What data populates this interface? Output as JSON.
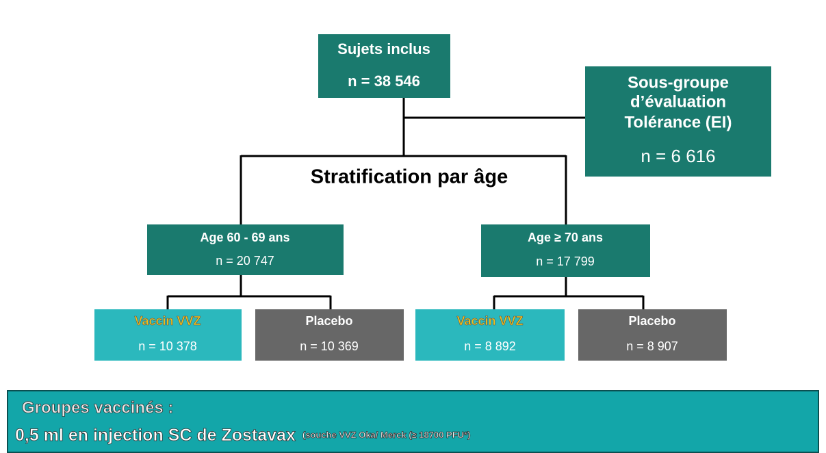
{
  "nodes": [
    {
      "label": "Sujets inclus",
      "count": "n = 38 546"
    },
    {
      "label": [
        "Sous-groupe",
        "d’évaluation",
        "Tolérance (EI)"
      ],
      "count": "n = 6 616"
    },
    {
      "label": "Age 60 - 69 ans",
      "count": "n = 20 747"
    },
    {
      "label": "Age ≥ 70 ans",
      "count": "n = 17 799"
    },
    {
      "label": "Vaccin VVZ",
      "count": "n = 10 378"
    },
    {
      "label": "Placebo",
      "count": "n = 10 369"
    },
    {
      "label": "Vaccin VVZ",
      "count": "n = 8 892"
    },
    {
      "label": "Placebo",
      "count": "n = 8 907"
    }
  ],
  "stratification": "Stratification par âge",
  "banner": {
    "title": "Groupes vaccinés :",
    "text": "0,5 ml en  injection SC de Zostavax",
    "note": "(souche VVZ Oka/ Merck (≥ 18700 PFU*)"
  }
}
